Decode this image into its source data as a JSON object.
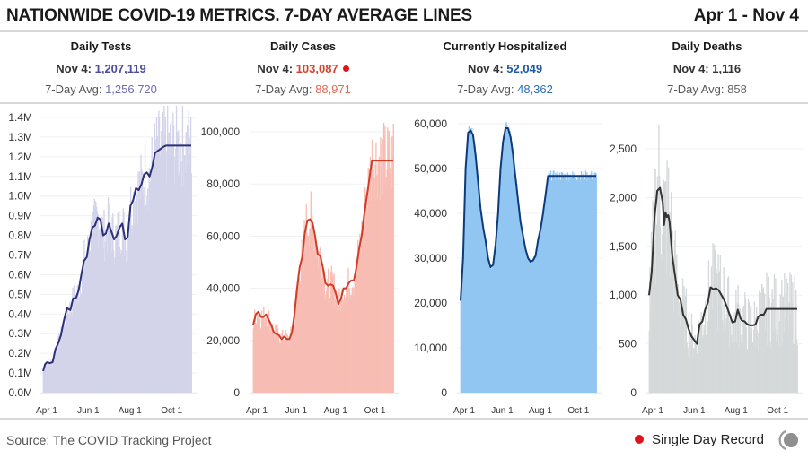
{
  "header": {
    "title": "NATIONWIDE COVID-19 METRICS. 7-DAY AVERAGE LINES",
    "date_range": "Apr 1 - Nov 4"
  },
  "stats": [
    {
      "name": "Daily Tests",
      "today_label": "Nov 4:",
      "today_value": "1,207,119",
      "avg_label": "7-Day Avg:",
      "avg_value": "1,256,720",
      "color": "#4b4d9c",
      "record": false
    },
    {
      "name": "Daily Cases",
      "today_label": "Nov 4:",
      "today_value": "103,087",
      "avg_label": "7-Day Avg:",
      "avg_value": "88,971",
      "color": "#d9422c",
      "record": true
    },
    {
      "name": "Currently Hospitalized",
      "today_label": "Nov 4:",
      "today_value": "52,049",
      "avg_label": "7-Day Avg:",
      "avg_value": "48,362",
      "color": "#1e5aa0",
      "record": false
    },
    {
      "name": "Daily Deaths",
      "today_label": "Nov 4:",
      "today_value": "1,116",
      "avg_label": "7-Day Avg:",
      "avg_value": "858",
      "color": "#555555",
      "record": false
    }
  ],
  "footer": {
    "source": "Source: The COVID Tracking Project",
    "legend_label": "Single Day Record",
    "record_color": "#e0131b"
  },
  "chart_data": [
    {
      "type": "area",
      "title": "Daily Tests",
      "xlabel": "",
      "ylabel": "",
      "x_range": [
        "Apr 1",
        "Nov 4"
      ],
      "x_ticks": [
        "Apr 1",
        "Jun 1",
        "Aug 1",
        "Oct 1"
      ],
      "y_ticks": [
        "0.0M",
        "0.1M",
        "0.2M",
        "0.3M",
        "0.4M",
        "0.5M",
        "0.6M",
        "0.7M",
        "0.8M",
        "0.9M",
        "1.0M",
        "1.1M",
        "1.2M",
        "1.3M",
        "1.4M"
      ],
      "ylim": [
        0,
        1400000
      ],
      "grid": true,
      "area_color": "#d3d4ea",
      "line_color": "#2d2f78",
      "series": [
        {
          "name": "7-day average",
          "days": [
            0,
            3,
            6,
            10,
            14,
            18,
            22,
            26,
            30,
            35,
            40,
            44,
            48,
            52,
            56,
            60,
            64,
            68,
            72,
            76,
            80,
            84,
            88,
            92,
            96,
            100,
            104,
            108,
            112,
            116,
            120,
            124,
            128,
            132,
            136,
            140,
            144,
            148,
            152,
            156,
            160,
            164,
            168,
            172,
            176,
            180,
            184,
            188,
            192,
            196,
            200,
            204,
            208,
            210,
            213,
            217
          ],
          "values": [
            110000,
            145000,
            155000,
            150000,
            155000,
            220000,
            250000,
            290000,
            360000,
            430000,
            420000,
            480000,
            480000,
            520000,
            600000,
            670000,
            690000,
            780000,
            840000,
            850000,
            890000,
            880000,
            800000,
            810000,
            860000,
            820000,
            780000,
            800000,
            840000,
            860000,
            780000,
            790000,
            950000,
            980000,
            1040000,
            1030000,
            1060000,
            1110000,
            1120000,
            1100000,
            1150000,
            1220000,
            1230000,
            1240000,
            1250000,
            1256720,
            1256720,
            1256720,
            1256720,
            1256720,
            1256720,
            1256720,
            1256720,
            1256720,
            1256720,
            1256720
          ]
        }
      ],
      "daily_peak": 1370000
    },
    {
      "type": "area",
      "title": "Daily Cases",
      "xlabel": "",
      "ylabel": "",
      "x_range": [
        "Apr 1",
        "Nov 4"
      ],
      "x_ticks": [
        "Apr 1",
        "Jun 1",
        "Aug 1",
        "Oct 1"
      ],
      "y_ticks": [
        "0",
        "20,000",
        "40,000",
        "60,000",
        "80,000",
        "100,000"
      ],
      "ylim": [
        0,
        100000
      ],
      "grid": true,
      "area_color": "#f7bcb3",
      "line_color": "#d13c26",
      "series": [
        {
          "name": "7-day average",
          "days": [
            0,
            4,
            8,
            12,
            16,
            20,
            24,
            28,
            32,
            36,
            40,
            44,
            48,
            52,
            56,
            60,
            64,
            68,
            72,
            76,
            80,
            84,
            88,
            92,
            96,
            100,
            104,
            108,
            112,
            116,
            120,
            124,
            128,
            132,
            136,
            140,
            144,
            148,
            152,
            156,
            160,
            164,
            168,
            172,
            176,
            180,
            184,
            188,
            192,
            196,
            200,
            204,
            208,
            212,
            217
          ],
          "values": [
            26000,
            30000,
            31000,
            29000,
            29000,
            30000,
            28000,
            26000,
            23000,
            22500,
            22000,
            20500,
            21500,
            20500,
            20500,
            23000,
            30000,
            40000,
            48000,
            52000,
            61000,
            66000,
            66500,
            65000,
            60000,
            53000,
            52500,
            48000,
            42000,
            41000,
            41500,
            41000,
            38000,
            34000,
            36000,
            40000,
            40000,
            42000,
            43000,
            43000,
            48000,
            55000,
            60000,
            68000,
            75000,
            82000,
            88971,
            88971,
            88971,
            88971,
            88971,
            88971,
            88971,
            88971,
            88971
          ]
        }
      ],
      "daily_peak": 103087
    },
    {
      "type": "area",
      "title": "Currently Hospitalized",
      "xlabel": "",
      "ylabel": "",
      "x_range": [
        "Apr 1",
        "Nov 4"
      ],
      "x_ticks": [
        "Apr 1",
        "Jun 1",
        "Aug 1",
        "Oct 1"
      ],
      "y_ticks": [
        "0",
        "10,000",
        "20,000",
        "30,000",
        "40,000",
        "50,000",
        "60,000"
      ],
      "ylim": [
        0,
        60000
      ],
      "grid": true,
      "area_color": "#92c6f2",
      "line_color": "#0d3b7a",
      "series": [
        {
          "name": "7-day average",
          "days": [
            0,
            4,
            8,
            12,
            16,
            20,
            24,
            28,
            32,
            36,
            40,
            44,
            48,
            52,
            56,
            60,
            64,
            68,
            72,
            76,
            80,
            84,
            88,
            92,
            96,
            100,
            104,
            108,
            112,
            116,
            120,
            124,
            128,
            132,
            136,
            140,
            144,
            148,
            152,
            156,
            160,
            164,
            168,
            172,
            176,
            180,
            184,
            188,
            192,
            196,
            200,
            204,
            208,
            212,
            217
          ],
          "values": [
            20500,
            30000,
            50000,
            58000,
            58500,
            57500,
            53000,
            47000,
            41000,
            37000,
            34000,
            30000,
            28000,
            28500,
            33000,
            40000,
            50000,
            56000,
            59000,
            59000,
            57000,
            53000,
            48000,
            43000,
            38000,
            35000,
            32000,
            30000,
            29200,
            29500,
            30500,
            34000,
            36500,
            40000,
            44000,
            48362,
            48362,
            48362,
            48362,
            48362,
            48362,
            48362,
            48362,
            48362,
            48362,
            48362,
            48362,
            48362,
            48362,
            48362,
            48362,
            48362,
            48362,
            48362,
            48362
          ]
        }
      ],
      "daily_peak": 60000
    },
    {
      "type": "area",
      "title": "Daily Deaths",
      "xlabel": "",
      "ylabel": "",
      "x_range": [
        "Apr 1",
        "Nov 4"
      ],
      "x_ticks": [
        "Apr 1",
        "Jun 1",
        "Aug 1",
        "Oct 1"
      ],
      "y_ticks": [
        "0",
        "500",
        "1,000",
        "1,500",
        "2,000",
        "2,500"
      ],
      "ylim": [
        0,
        2750
      ],
      "grid": true,
      "area_color": "#d5d9da",
      "line_color": "#333333",
      "series": [
        {
          "name": "7-day average",
          "days": [
            0,
            4,
            8,
            12,
            16,
            20,
            22,
            24,
            26,
            28,
            30,
            34,
            38,
            42,
            46,
            50,
            54,
            58,
            62,
            66,
            70,
            74,
            78,
            82,
            86,
            90,
            94,
            98,
            102,
            106,
            110,
            114,
            118,
            122,
            126,
            130,
            134,
            136,
            140,
            144,
            148,
            152,
            156,
            160,
            164,
            168,
            172,
            176,
            180,
            184,
            188,
            192,
            196,
            200,
            204,
            208,
            212,
            217
          ],
          "values": [
            1000,
            1250,
            1800,
            2070,
            2100,
            1950,
            1720,
            1850,
            1800,
            1820,
            1750,
            1400,
            1200,
            1000,
            950,
            800,
            750,
            650,
            580,
            540,
            500,
            700,
            730,
            850,
            920,
            1080,
            1060,
            1070,
            1050,
            1000,
            950,
            880,
            800,
            720,
            730,
            850,
            760,
            740,
            730,
            700,
            690,
            690,
            700,
            780,
            800,
            800,
            858,
            858,
            858,
            858,
            858,
            858,
            858,
            858,
            858,
            858,
            858,
            858
          ]
        }
      ],
      "daily_peak": 2750
    }
  ]
}
